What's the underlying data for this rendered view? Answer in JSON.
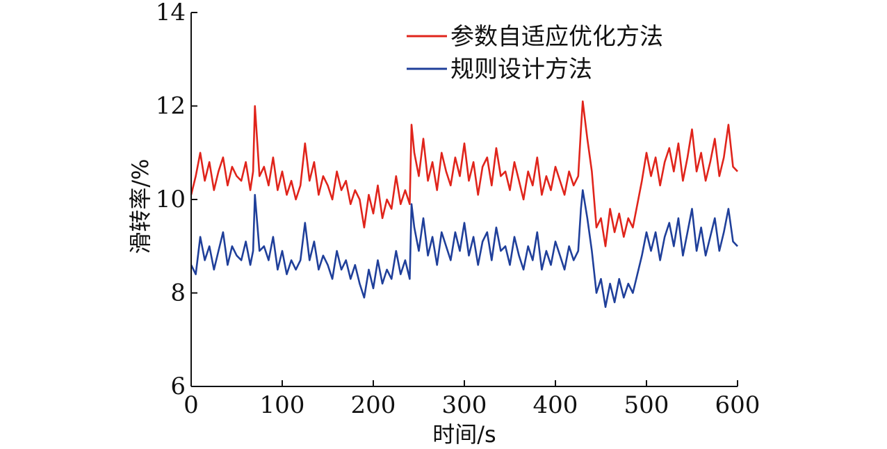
{
  "chart_data": {
    "type": "line",
    "title": "",
    "xlabel": "时间/s",
    "ylabel": "滑转率/%",
    "xlim": [
      0,
      600
    ],
    "ylim": [
      6,
      14
    ],
    "xticks": [
      0,
      100,
      200,
      300,
      400,
      500,
      600
    ],
    "yticks": [
      6,
      8,
      10,
      12,
      14
    ],
    "grid": false,
    "legend_position": "top-right",
    "series": [
      {
        "name": "参数自适应优化方法",
        "color": "#e0241b",
        "x": [
          0,
          5,
          10,
          15,
          20,
          25,
          30,
          35,
          40,
          45,
          50,
          55,
          60,
          65,
          68,
          70,
          75,
          80,
          85,
          90,
          95,
          100,
          105,
          110,
          115,
          120,
          125,
          130,
          135,
          140,
          145,
          150,
          155,
          160,
          165,
          170,
          175,
          180,
          185,
          190,
          195,
          200,
          205,
          210,
          215,
          220,
          225,
          230,
          235,
          240,
          242,
          245,
          250,
          255,
          260,
          265,
          270,
          275,
          280,
          285,
          290,
          295,
          300,
          305,
          310,
          315,
          320,
          325,
          330,
          335,
          340,
          345,
          350,
          355,
          360,
          365,
          370,
          375,
          380,
          385,
          390,
          395,
          400,
          405,
          410,
          415,
          420,
          425,
          428,
          430,
          435,
          440,
          445,
          450,
          455,
          460,
          465,
          470,
          475,
          480,
          485,
          490,
          495,
          500,
          505,
          510,
          515,
          520,
          525,
          530,
          535,
          540,
          545,
          550,
          555,
          560,
          565,
          570,
          575,
          580,
          585,
          590,
          595,
          600
        ],
        "values": [
          10.1,
          10.5,
          11.0,
          10.4,
          10.8,
          10.2,
          10.6,
          10.9,
          10.3,
          10.7,
          10.5,
          10.4,
          10.8,
          10.2,
          10.6,
          12.0,
          10.5,
          10.7,
          10.3,
          10.9,
          10.2,
          10.6,
          10.1,
          10.4,
          10.0,
          10.3,
          11.2,
          10.4,
          10.8,
          10.1,
          10.5,
          10.3,
          10.0,
          10.6,
          10.2,
          10.4,
          9.9,
          10.2,
          10.0,
          9.4,
          10.1,
          9.7,
          10.3,
          9.6,
          10.0,
          9.8,
          10.5,
          9.9,
          10.2,
          9.9,
          11.6,
          11.0,
          10.5,
          11.3,
          10.4,
          10.8,
          10.2,
          11.0,
          10.6,
          10.3,
          10.9,
          10.5,
          11.2,
          10.4,
          10.8,
          10.1,
          10.7,
          10.9,
          10.3,
          11.1,
          10.5,
          10.6,
          10.2,
          10.8,
          10.4,
          10.0,
          10.6,
          10.3,
          10.9,
          10.1,
          10.5,
          10.2,
          10.7,
          10.4,
          10.1,
          10.6,
          10.3,
          10.5,
          11.5,
          12.1,
          11.3,
          10.6,
          9.4,
          9.6,
          9.0,
          9.8,
          9.3,
          9.7,
          9.2,
          9.6,
          9.4,
          9.9,
          10.4,
          11.0,
          10.5,
          10.9,
          10.3,
          10.8,
          11.1,
          10.6,
          11.2,
          10.4,
          10.9,
          11.5,
          10.6,
          11.0,
          10.4,
          10.8,
          11.3,
          10.5,
          10.9,
          11.6,
          10.7,
          10.6
        ]
      },
      {
        "name": "规则设计方法",
        "color": "#1f3f9a",
        "x": [
          0,
          5,
          10,
          15,
          20,
          25,
          30,
          35,
          40,
          45,
          50,
          55,
          60,
          65,
          68,
          70,
          75,
          80,
          85,
          90,
          95,
          100,
          105,
          110,
          115,
          120,
          125,
          130,
          135,
          140,
          145,
          150,
          155,
          160,
          165,
          170,
          175,
          180,
          185,
          190,
          195,
          200,
          205,
          210,
          215,
          220,
          225,
          230,
          235,
          240,
          242,
          245,
          250,
          255,
          260,
          265,
          270,
          275,
          280,
          285,
          290,
          295,
          300,
          305,
          310,
          315,
          320,
          325,
          330,
          335,
          340,
          345,
          350,
          355,
          360,
          365,
          370,
          375,
          380,
          385,
          390,
          395,
          400,
          405,
          410,
          415,
          420,
          425,
          428,
          430,
          435,
          440,
          445,
          450,
          455,
          460,
          465,
          470,
          475,
          480,
          485,
          490,
          495,
          500,
          505,
          510,
          515,
          520,
          525,
          530,
          535,
          540,
          545,
          550,
          555,
          560,
          565,
          570,
          575,
          580,
          585,
          590,
          595,
          600
        ],
        "values": [
          8.6,
          8.4,
          9.2,
          8.7,
          9.0,
          8.5,
          8.9,
          9.3,
          8.6,
          9.0,
          8.8,
          8.7,
          9.1,
          8.6,
          8.9,
          10.1,
          8.9,
          9.0,
          8.7,
          9.2,
          8.5,
          8.9,
          8.4,
          8.7,
          8.5,
          8.7,
          9.5,
          8.7,
          9.1,
          8.5,
          8.8,
          8.6,
          8.3,
          8.9,
          8.5,
          8.7,
          8.3,
          8.6,
          8.2,
          7.9,
          8.5,
          8.1,
          8.7,
          8.2,
          8.5,
          8.3,
          8.9,
          8.4,
          8.7,
          8.3,
          9.9,
          9.4,
          8.9,
          9.6,
          8.8,
          9.2,
          8.6,
          9.3,
          9.0,
          8.7,
          9.3,
          8.9,
          9.5,
          8.8,
          9.2,
          8.6,
          9.1,
          9.3,
          8.7,
          9.4,
          8.9,
          9.0,
          8.6,
          9.2,
          8.8,
          8.5,
          9.0,
          8.7,
          9.3,
          8.5,
          8.9,
          8.6,
          9.1,
          8.8,
          8.5,
          9.0,
          8.7,
          8.9,
          9.8,
          10.2,
          9.6,
          8.9,
          8.0,
          8.3,
          7.7,
          8.2,
          7.8,
          8.3,
          7.9,
          8.2,
          8.0,
          8.4,
          8.8,
          9.3,
          8.9,
          9.3,
          8.7,
          9.2,
          9.5,
          9.0,
          9.6,
          8.8,
          9.3,
          9.8,
          8.9,
          9.4,
          8.8,
          9.2,
          9.6,
          8.9,
          9.3,
          9.8,
          9.1,
          9.0
        ]
      }
    ]
  }
}
